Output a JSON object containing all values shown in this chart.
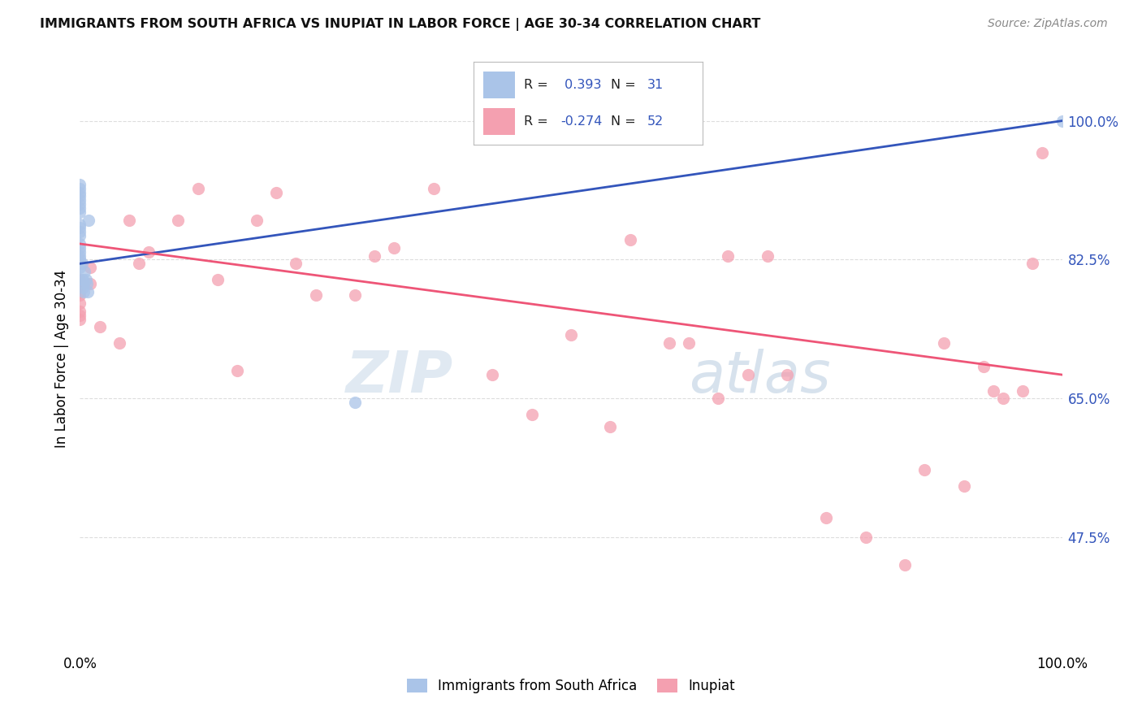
{
  "title": "IMMIGRANTS FROM SOUTH AFRICA VS INUPIAT IN LABOR FORCE | AGE 30-34 CORRELATION CHART",
  "source": "Source: ZipAtlas.com",
  "ylabel": "In Labor Force | Age 30-34",
  "xmin": 0.0,
  "xmax": 1.0,
  "ymin": 0.33,
  "ymax": 1.07,
  "yticks": [
    0.475,
    0.65,
    0.825,
    1.0
  ],
  "ytick_labels": [
    "47.5%",
    "65.0%",
    "82.5%",
    "100.0%"
  ],
  "xtick_labels": [
    "0.0%",
    "100.0%"
  ],
  "blue_r": 0.393,
  "blue_n": 31,
  "pink_r": -0.274,
  "pink_n": 52,
  "blue_color": "#aac4e8",
  "pink_color": "#f4a0b0",
  "blue_line_color": "#3355bb",
  "pink_line_color": "#ee5577",
  "blue_points_x": [
    0.0,
    0.0,
    0.0,
    0.0,
    0.0,
    0.0,
    0.0,
    0.0,
    0.0,
    0.0,
    0.0,
    0.0,
    0.0,
    0.0,
    0.0,
    0.0,
    0.0,
    0.0,
    0.002,
    0.002,
    0.003,
    0.003,
    0.004,
    0.004,
    0.005,
    0.006,
    0.007,
    0.008,
    0.009,
    0.28,
    1.0
  ],
  "blue_points_y": [
    0.92,
    0.915,
    0.91,
    0.905,
    0.9,
    0.895,
    0.89,
    0.885,
    0.87,
    0.865,
    0.86,
    0.855,
    0.845,
    0.84,
    0.835,
    0.83,
    0.825,
    0.815,
    0.82,
    0.8,
    0.8,
    0.79,
    0.795,
    0.785,
    0.81,
    0.8,
    0.795,
    0.785,
    0.875,
    0.645,
    1.0
  ],
  "pink_points_x": [
    0.0,
    0.0,
    0.0,
    0.0,
    0.0,
    0.0,
    0.0,
    0.0,
    0.0,
    0.01,
    0.01,
    0.02,
    0.04,
    0.05,
    0.06,
    0.07,
    0.1,
    0.12,
    0.14,
    0.16,
    0.18,
    0.2,
    0.22,
    0.24,
    0.28,
    0.3,
    0.32,
    0.36,
    0.42,
    0.46,
    0.5,
    0.54,
    0.56,
    0.6,
    0.62,
    0.65,
    0.66,
    0.68,
    0.7,
    0.72,
    0.76,
    0.8,
    0.84,
    0.86,
    0.88,
    0.9,
    0.92,
    0.93,
    0.94,
    0.96,
    0.97,
    0.98
  ],
  "pink_points_y": [
    0.8,
    0.795,
    0.79,
    0.785,
    0.78,
    0.77,
    0.76,
    0.755,
    0.75,
    0.815,
    0.795,
    0.74,
    0.72,
    0.875,
    0.82,
    0.835,
    0.875,
    0.915,
    0.8,
    0.685,
    0.875,
    0.91,
    0.82,
    0.78,
    0.78,
    0.83,
    0.84,
    0.915,
    0.68,
    0.63,
    0.73,
    0.615,
    0.85,
    0.72,
    0.72,
    0.65,
    0.83,
    0.68,
    0.83,
    0.68,
    0.5,
    0.475,
    0.44,
    0.56,
    0.72,
    0.54,
    0.69,
    0.66,
    0.65,
    0.66,
    0.82,
    0.96
  ],
  "blue_line_x0": 0.0,
  "blue_line_y0": 0.82,
  "blue_line_x1": 1.0,
  "blue_line_y1": 1.0,
  "pink_line_x0": 0.0,
  "pink_line_y0": 0.845,
  "pink_line_x1": 1.0,
  "pink_line_y1": 0.68,
  "watermark_zip": "ZIP",
  "watermark_atlas": "atlas",
  "background_color": "#ffffff",
  "grid_color": "#dddddd"
}
